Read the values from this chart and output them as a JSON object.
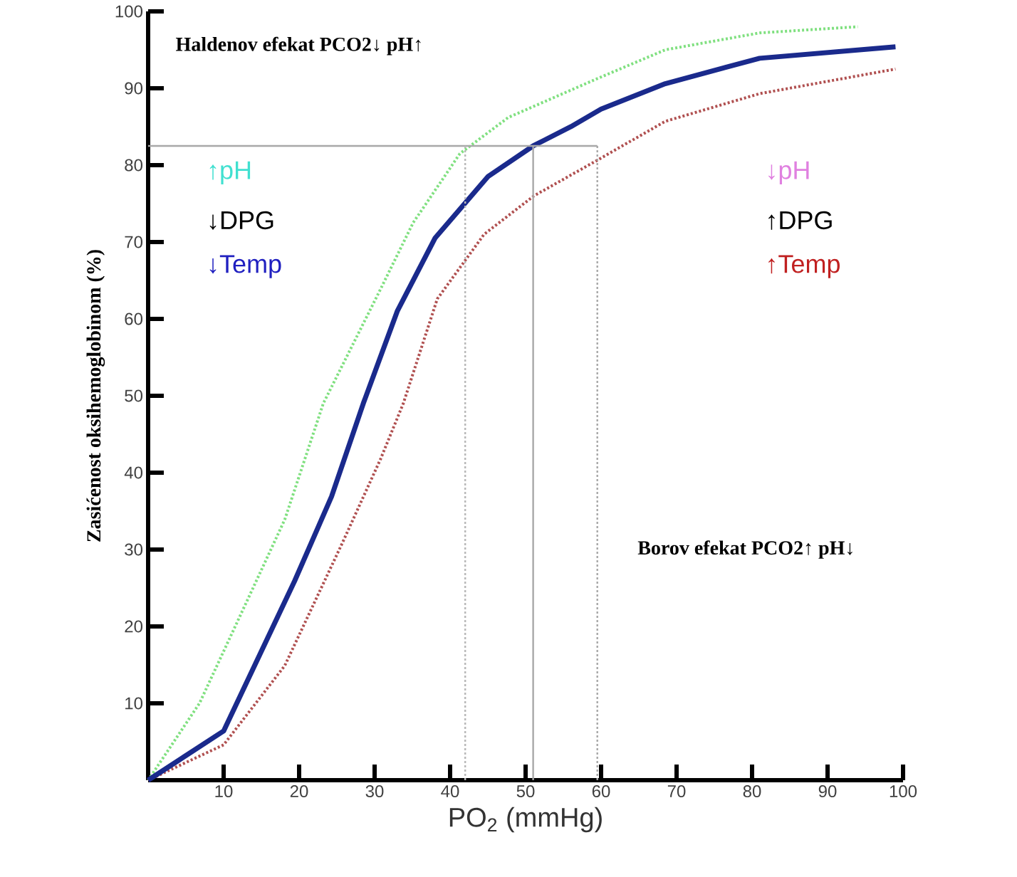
{
  "chart_data": {
    "type": "line",
    "xlabel": "PO$_{2}$ (mmHg)",
    "ylabel": "Zasićenost oksihemoglobinom (%)",
    "xlim": [
      0,
      100
    ],
    "ylim": [
      0,
      100
    ],
    "xticks": [
      10,
      20,
      30,
      40,
      50,
      60,
      70,
      80,
      90,
      100
    ],
    "yticks": [
      10,
      20,
      30,
      40,
      50,
      60,
      70,
      80,
      90,
      100
    ],
    "marker": "none",
    "series": [
      {
        "color": "#80e080",
        "line_style": "dotted",
        "x": [
          0,
          6.8,
          13.8,
          18.1,
          23.2,
          30.8,
          35.1,
          41.3,
          47.7,
          59.6,
          68.5,
          81,
          94
        ],
        "values": [
          0,
          10,
          24.8,
          33.9,
          49,
          63.9,
          72.5,
          81.5,
          86.2,
          91.3,
          95,
          97.2,
          98
        ]
      },
      {
        "color": "#b05050",
        "line_style": "dotted",
        "x": [
          0,
          10,
          18.1,
          25.7,
          30.8,
          33.8,
          38.3,
          44.5,
          51.1,
          59.6,
          68.5,
          81,
          99
        ],
        "values": [
          0,
          4.6,
          14.9,
          30.8,
          41.8,
          49,
          62.6,
          71,
          76,
          80.7,
          85.7,
          89.3,
          92.5
        ]
      },
      {
        "color": "#1a2a8c",
        "line_style": "solid",
        "x": [
          0,
          10,
          19.4,
          24.3,
          28.5,
          33,
          38,
          45,
          51,
          56,
          60,
          68.5,
          81,
          99
        ],
        "values": [
          0,
          6.4,
          25.9,
          36.9,
          49,
          61,
          70.5,
          78.5,
          82.5,
          85,
          87.3,
          90.6,
          93.9,
          95.4
        ]
      },
      {
        "color": "#a8a8a8",
        "line_style": "solid",
        "x": [
          0,
          59.5
        ],
        "values": [
          82.5,
          82.5
        ]
      },
      {
        "color": "#b8b8b8",
        "line_style": "dotted",
        "x": [
          42,
          42
        ],
        "values": [
          0,
          82.5
        ]
      },
      {
        "color": "#a8a8a8",
        "line_style": "solid",
        "x": [
          51,
          51
        ],
        "values": [
          0,
          82.5
        ]
      },
      {
        "color": "#a8a8a8",
        "line_style": "dotted",
        "x": [
          59.5,
          59.5
        ],
        "values": [
          0,
          82.5
        ]
      }
    ],
    "annotations": [
      "Haldenov efekat PCO2↓ pH↑",
      "Borov efekat PCO2↑ pH↓",
      "↑pH",
      "↓DPG",
      "↓Temp",
      "↓pH",
      "↑DPG",
      "↑Temp"
    ]
  }
}
